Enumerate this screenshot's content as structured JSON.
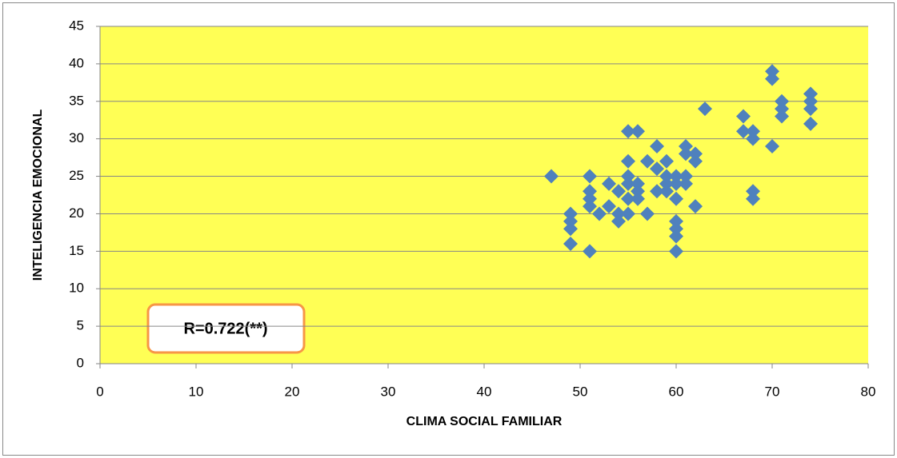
{
  "chart_data": {
    "type": "scatter",
    "x_label": "CLIMA SOCIAL FAMILIAR",
    "y_label": "INTELIGENCIA EMOCIONAL",
    "annotation": "R=0.722(**)",
    "color": "#4f81bd",
    "grid": true,
    "xlim": [
      0,
      80
    ],
    "xticks": [
      0,
      10,
      20,
      30,
      40,
      50,
      60,
      70,
      80
    ],
    "ylim": [
      0,
      45
    ],
    "yticks": [
      0,
      5,
      10,
      15,
      20,
      25,
      30,
      35,
      40,
      45
    ],
    "x": [
      47,
      49,
      49,
      49,
      49,
      51,
      51,
      51,
      51,
      51,
      52,
      53,
      53,
      54,
      54,
      54,
      55,
      55,
      55,
      55,
      55,
      55,
      56,
      56,
      56,
      56,
      57,
      57,
      58,
      58,
      58,
      59,
      59,
      59,
      59,
      60,
      60,
      60,
      60,
      60,
      60,
      60,
      61,
      61,
      61,
      61,
      62,
      62,
      62,
      63,
      67,
      67,
      68,
      68,
      68,
      68,
      70,
      70,
      70,
      71,
      71,
      71,
      74,
      74,
      74,
      74
    ],
    "y": [
      25,
      20,
      19,
      18,
      16,
      25,
      23,
      22,
      21,
      15,
      20,
      24,
      21,
      23,
      20,
      19,
      31,
      27,
      25,
      24,
      22,
      20,
      31,
      24,
      23,
      22,
      27,
      20,
      29,
      26,
      23,
      27,
      25,
      24,
      23,
      25,
      24,
      22,
      19,
      18,
      17,
      15,
      29,
      28,
      25,
      24,
      28,
      27,
      21,
      34,
      33,
      31,
      31,
      30,
      23,
      22,
      39,
      38,
      29,
      35,
      34,
      33,
      36,
      35,
      34,
      32
    ]
  }
}
